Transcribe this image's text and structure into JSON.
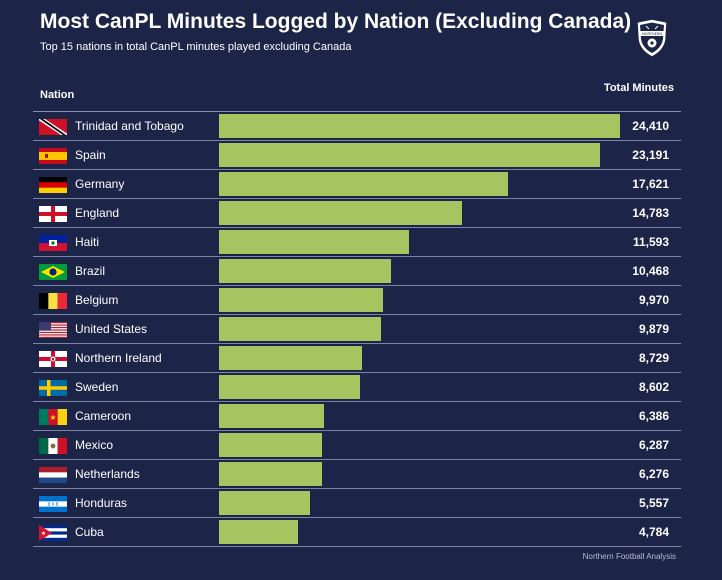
{
  "header": {
    "title": "Most CanPL Minutes Logged by Nation (Excluding Canada)",
    "subtitle": "Top 15 nations in total CanPL minutes played excluding Canada"
  },
  "columns": {
    "nation": "Nation",
    "total": "Total Minutes"
  },
  "footer": {
    "credit": "Northern Football Analysis"
  },
  "logo": {
    "text": "NORTHERN"
  },
  "colors": {
    "background": "#1c2448",
    "bar": "#a6c460",
    "text": "#ffffff"
  },
  "chart_data": {
    "type": "bar",
    "orientation": "horizontal",
    "title": "Most CanPL Minutes Logged by Nation (Excluding Canada)",
    "subtitle": "Top 15 nations in total CanPL minutes played excluding Canada",
    "xlabel": "Total Minutes",
    "ylabel": "Nation",
    "xlim": [
      0,
      24410
    ],
    "categories": [
      "Trinidad and Tobago",
      "Spain",
      "Germany",
      "England",
      "Haiti",
      "Brazil",
      "Belgium",
      "United States",
      "Northern Ireland",
      "Sweden",
      "Cameroon",
      "Mexico",
      "Netherlands",
      "Honduras",
      "Cuba"
    ],
    "values": [
      24410,
      23191,
      17621,
      14783,
      11593,
      10468,
      9970,
      9879,
      8729,
      8602,
      6386,
      6287,
      6276,
      5557,
      4784
    ],
    "value_labels": [
      "24,410",
      "23,191",
      "17,621",
      "14,783",
      "11,593",
      "10,468",
      "9,970",
      "9,879",
      "8,729",
      "8,602",
      "6,386",
      "6,287",
      "6,276",
      "5,557",
      "4,784"
    ],
    "flags": [
      "trinidad-and-tobago-flag-icon",
      "spain-flag-icon",
      "germany-flag-icon",
      "england-flag-icon",
      "haiti-flag-icon",
      "brazil-flag-icon",
      "belgium-flag-icon",
      "united-states-flag-icon",
      "northern-ireland-flag-icon",
      "sweden-flag-icon",
      "cameroon-flag-icon",
      "mexico-flag-icon",
      "netherlands-flag-icon",
      "honduras-flag-icon",
      "cuba-flag-icon"
    ]
  }
}
